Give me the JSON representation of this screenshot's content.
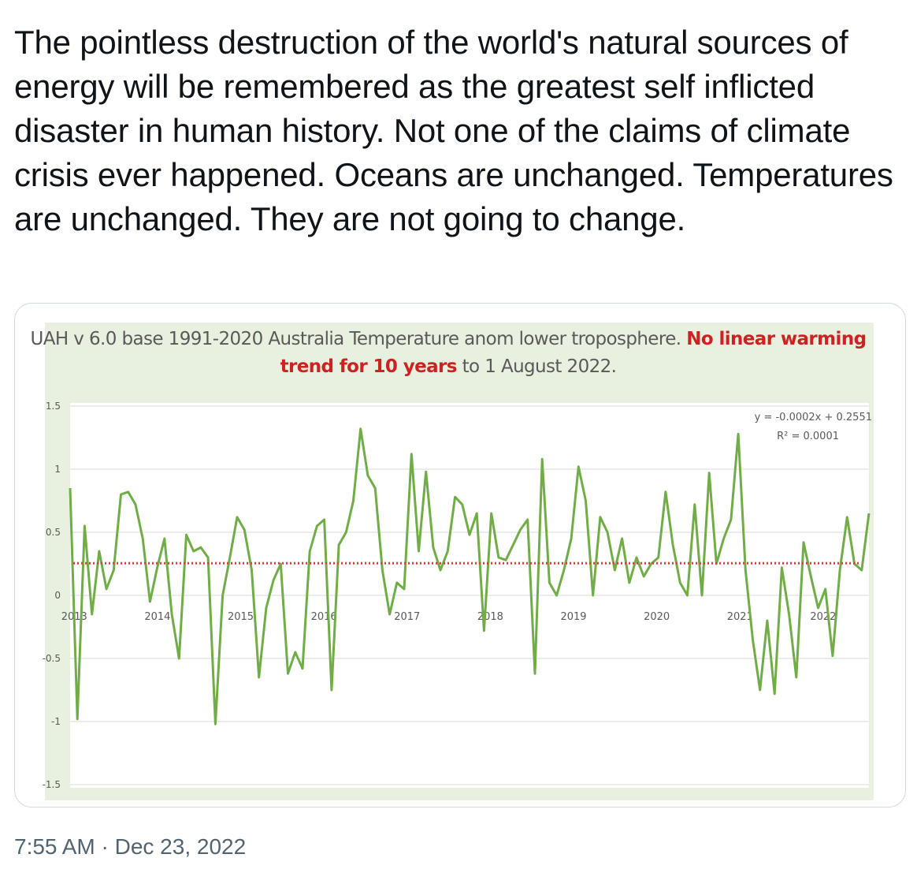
{
  "tweet": {
    "text": "The pointless destruction of the world's natural sources of energy will be remembered as the greatest self inflicted disaster in human history. Not one of the claims of climate crisis ever happened. Oceans are unchanged. Temperatures are unchanged. They are not going to change.",
    "timestamp": "7:55 AM · Dec 23, 2022"
  },
  "chart_data": {
    "type": "line",
    "title_part1": "UAH v 6.0 base 1991-2020 Australia Temperature anom  lower troposphere. ",
    "title_highlight": "No linear warming trend for 10 years",
    "title_part2": " to 1 August 2022.",
    "y_ticks": [
      "1.5",
      "1",
      "0.5",
      "0",
      "-0.5",
      "-1",
      "-1.5"
    ],
    "y_tick_values": [
      1.5,
      1,
      0.5,
      0,
      -0.5,
      -1,
      -1.5
    ],
    "ylim": [
      -1.5,
      1.5
    ],
    "x_ticks": [
      "2013",
      "2014",
      "2015",
      "2016",
      "2017",
      "2018",
      "2019",
      "2020",
      "2021",
      "2022"
    ],
    "xlim": [
      2013.0,
      2022.6
    ],
    "grid": true,
    "trendline": {
      "equation": "y = -0.0002x + 0.2551",
      "r_squared": "R² = 0.0001",
      "value": 0.255
    },
    "colors": {
      "line": "#70ad47",
      "trend": "#e03c3c",
      "panel": "#e8f1df",
      "highlight": "#cc2222"
    },
    "series": [
      {
        "values": [
          0.85,
          -0.98,
          0.55,
          -0.15,
          0.35,
          0.05,
          0.2,
          0.8,
          0.82,
          0.72,
          0.45,
          -0.05,
          0.22,
          0.45,
          -0.15,
          -0.5,
          0.48,
          0.35,
          0.38,
          0.3,
          -1.02,
          0.0,
          0.3,
          0.62,
          0.52,
          0.2,
          -0.65,
          -0.1,
          0.12,
          0.25,
          -0.62,
          -0.45,
          -0.58,
          0.35,
          0.55,
          0.6,
          -0.75,
          0.4,
          0.5,
          0.75,
          1.32,
          0.95,
          0.85,
          0.2,
          -0.15,
          0.1,
          0.05,
          1.12,
          0.35,
          0.98,
          0.38,
          0.2,
          0.35,
          0.78,
          0.72,
          0.48,
          0.65,
          -0.28,
          0.65,
          0.3,
          0.28,
          0.4,
          0.52,
          0.6,
          -0.62,
          1.08,
          0.1,
          0.0,
          0.2,
          0.45,
          1.02,
          0.75,
          0.0,
          0.62,
          0.5,
          0.2,
          0.45,
          0.1,
          0.3,
          0.15,
          0.25,
          0.3,
          0.82,
          0.4,
          0.1,
          0.0,
          0.72,
          0.0,
          0.97,
          0.25,
          0.45,
          0.6,
          1.28,
          0.2,
          -0.35,
          -0.75,
          -0.2,
          -0.78,
          0.22,
          -0.15,
          -0.65,
          0.42,
          0.15,
          -0.1,
          0.05,
          -0.48,
          0.2,
          0.62,
          0.25,
          0.2,
          0.65
        ]
      }
    ]
  }
}
